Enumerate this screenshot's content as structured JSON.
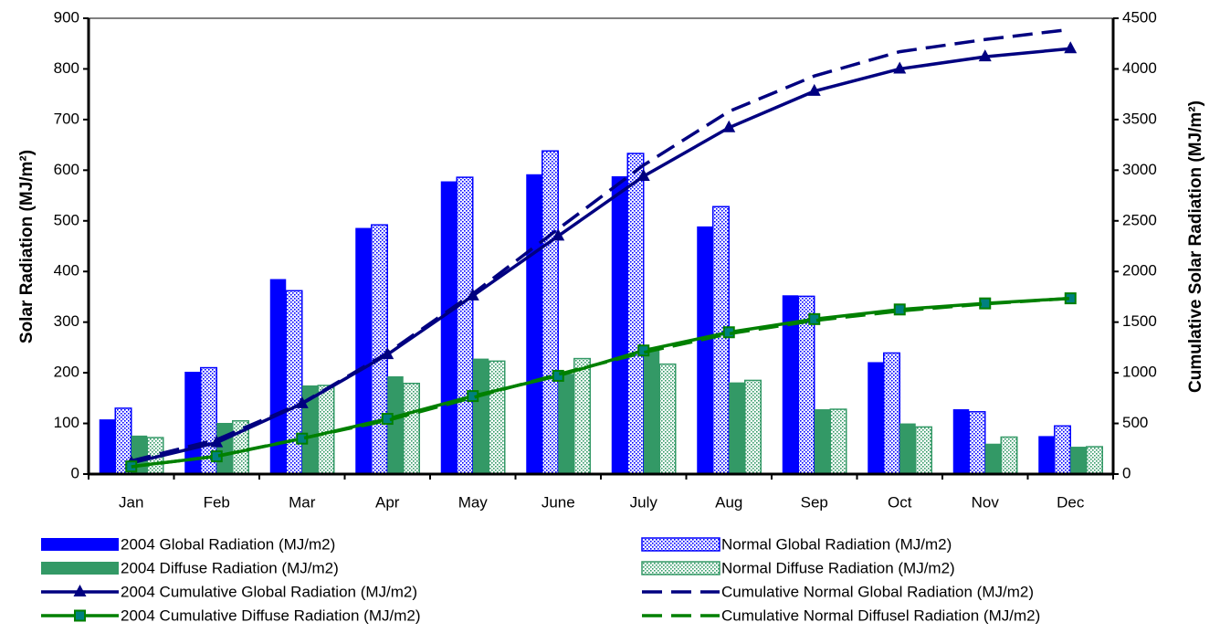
{
  "chart_data": {
    "type": "combo",
    "categories": [
      "Jan",
      "Feb",
      "Mar",
      "Apr",
      "May",
      "June",
      "July",
      "Aug",
      "Sep",
      "Oct",
      "Nov",
      "Dec"
    ],
    "ylabel": "Solar Radiation (MJ/m²)",
    "y2label": "Cumulative Solar Radiation (MJ/m²)",
    "ylim": [
      0,
      900
    ],
    "yticks": [
      0,
      100,
      200,
      300,
      400,
      500,
      600,
      700,
      800,
      900
    ],
    "y2lim": [
      0,
      4500
    ],
    "y2ticks": [
      0,
      500,
      1000,
      1500,
      2000,
      2500,
      3000,
      3500,
      4000,
      4500
    ],
    "series": [
      {
        "name": "2004 Global Radiation (MJ/m2)",
        "type": "bar",
        "color": "#0000ff",
        "pattern": "solid",
        "values": [
          108,
          202,
          385,
          486,
          578,
          592,
          588,
          489,
          353,
          221,
          128,
          75
        ]
      },
      {
        "name": "Normal Global Radiation (MJ/m2)",
        "type": "bar",
        "color": "#0000ff",
        "pattern": "dots",
        "values": [
          130,
          210,
          362,
          492,
          586,
          638,
          633,
          528,
          351,
          239,
          123,
          95
        ]
      },
      {
        "name": "2004 Diffuse Radiation (MJ/m2)",
        "type": "bar",
        "color": "#339966",
        "pattern": "solid",
        "values": [
          76,
          101,
          175,
          193,
          228,
          198,
          250,
          181,
          128,
          100,
          60,
          54
        ]
      },
      {
        "name": "Normal Diffuse Radiation (MJ/m2)",
        "type": "bar",
        "color": "#339966",
        "pattern": "dots",
        "values": [
          72,
          105,
          175,
          179,
          223,
          228,
          217,
          185,
          128,
          93,
          73,
          54
        ]
      },
      {
        "name": "2004 Cumulative Global Radiation (MJ/m2)",
        "type": "line",
        "axis": "y2",
        "color": "#000080",
        "dashed": false,
        "marker": "triangle",
        "values": [
          110,
          310,
          695,
          1180,
          1760,
          2350,
          2940,
          3420,
          3780,
          4000,
          4120,
          4200
        ]
      },
      {
        "name": "Cumulative Normal Global Radiation (MJ/m2)",
        "type": "line",
        "axis": "y2",
        "color": "#000080",
        "dashed": true,
        "marker": "none",
        "values": [
          130,
          340,
          700,
          1195,
          1780,
          2420,
          3050,
          3580,
          3930,
          4170,
          4290,
          4390
        ]
      },
      {
        "name": "2004 Cumulative Diffuse Radiation (MJ/m2)",
        "type": "line",
        "axis": "y2",
        "color": "#008000",
        "dashed": false,
        "marker": "square",
        "values": [
          75,
          175,
          350,
          545,
          770,
          970,
          1220,
          1400,
          1530,
          1625,
          1685,
          1735
        ]
      },
      {
        "name": "Cumulative Normal Diffusel Radiation (MJ/m2)",
        "type": "line",
        "axis": "y2",
        "color": "#008000",
        "dashed": true,
        "marker": "none",
        "values": [
          72,
          177,
          352,
          530,
          755,
          985,
          1200,
          1385,
          1515,
          1610,
          1680,
          1735
        ]
      }
    ]
  }
}
